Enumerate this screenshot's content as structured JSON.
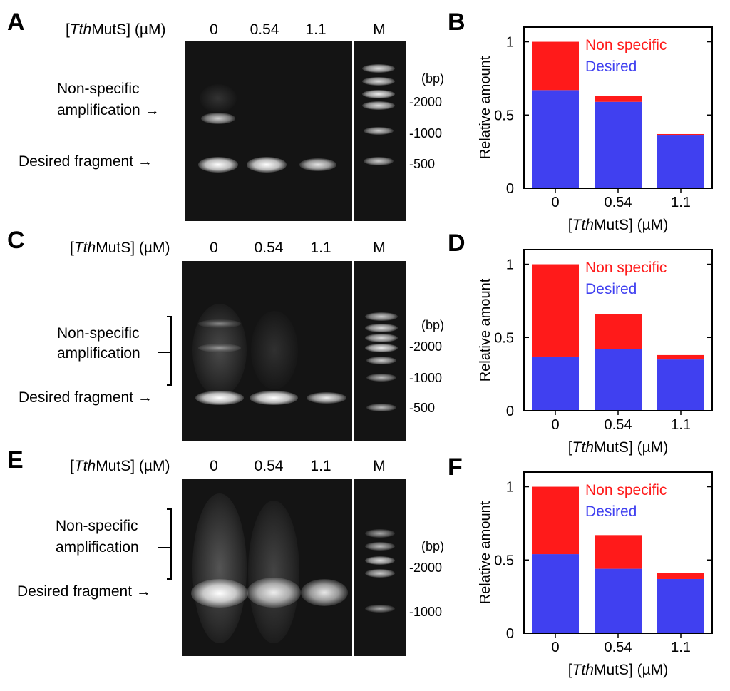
{
  "gel_panels": [
    {
      "letter": "A",
      "concentration_label_prefix": "[",
      "concentration_label_italic": "Tth",
      "concentration_label_suffix": "MutS] (µM)",
      "lanes": [
        "0",
        "0.54",
        "1.1",
        "M"
      ],
      "nonspecific_label_line1": "Non-specific",
      "nonspecific_label_line2": "amplification",
      "desired_label": "Desired fragment",
      "arrow": "→",
      "bp_unit": "(bp)",
      "markers": [
        "-2000",
        "-1000",
        "-500"
      ]
    },
    {
      "letter": "C",
      "concentration_label_prefix": "[",
      "concentration_label_italic": "Tth",
      "concentration_label_suffix": "MutS] (µM)",
      "lanes": [
        "0",
        "0.54",
        "1.1",
        "M"
      ],
      "nonspecific_label_line1": "Non-specific",
      "nonspecific_label_line2": "amplification",
      "desired_label": "Desired fragment",
      "arrow": "→",
      "bp_unit": "(bp)",
      "markers": [
        "-2000",
        "-1000",
        "-500"
      ]
    },
    {
      "letter": "E",
      "concentration_label_prefix": "[",
      "concentration_label_italic": "Tth",
      "concentration_label_suffix": "MutS] (µM)",
      "lanes": [
        "0",
        "0.54",
        "1.1",
        "M"
      ],
      "nonspecific_label_line1": "Non-specific",
      "nonspecific_label_line2": "amplification",
      "desired_label": "Desired fragment",
      "arrow": "→",
      "bp_unit": "(bp)",
      "markers": [
        "-2000",
        "-1000"
      ]
    }
  ],
  "chart_data": [
    {
      "letter": "B",
      "type": "bar",
      "stacked": true,
      "categories": [
        "0",
        "0.54",
        "1.1"
      ],
      "series": [
        {
          "name": "Desired",
          "color": "#4040f0",
          "values": [
            0.67,
            0.59,
            0.36
          ]
        },
        {
          "name": "Non specific",
          "color": "#ff1a1a",
          "values": [
            0.33,
            0.04,
            0.01
          ]
        }
      ],
      "ylabel": "Relative amount",
      "xlabel_prefix": "[",
      "xlabel_italic": "Tth",
      "xlabel_suffix": "MutS] (µM)",
      "ylim": [
        0,
        1.1
      ],
      "yticks": [
        "0",
        "0.5",
        "1"
      ],
      "legend_position": "top-right"
    },
    {
      "letter": "D",
      "type": "bar",
      "stacked": true,
      "categories": [
        "0",
        "0.54",
        "1.1"
      ],
      "series": [
        {
          "name": "Desired",
          "color": "#4040f0",
          "values": [
            0.37,
            0.42,
            0.35
          ]
        },
        {
          "name": "Non specific",
          "color": "#ff1a1a",
          "values": [
            0.63,
            0.24,
            0.03
          ]
        }
      ],
      "ylabel": "Relative amount",
      "xlabel_prefix": "[",
      "xlabel_italic": "Tth",
      "xlabel_suffix": "MutS] (µM)",
      "ylim": [
        0,
        1.1
      ],
      "yticks": [
        "0",
        "0.5",
        "1"
      ],
      "legend_position": "top-right"
    },
    {
      "letter": "F",
      "type": "bar",
      "stacked": true,
      "categories": [
        "0",
        "0.54",
        "1.1"
      ],
      "series": [
        {
          "name": "Desired",
          "color": "#4040f0",
          "values": [
            0.54,
            0.44,
            0.37
          ]
        },
        {
          "name": "Non specific",
          "color": "#ff1a1a",
          "values": [
            0.46,
            0.23,
            0.04
          ]
        }
      ],
      "ylabel": "Relative amount",
      "xlabel_prefix": "[",
      "xlabel_italic": "Tth",
      "xlabel_suffix": "MutS] (µM)",
      "ylim": [
        0,
        1.1
      ],
      "yticks": [
        "0",
        "0.5",
        "1"
      ],
      "legend_position": "top-right"
    }
  ]
}
